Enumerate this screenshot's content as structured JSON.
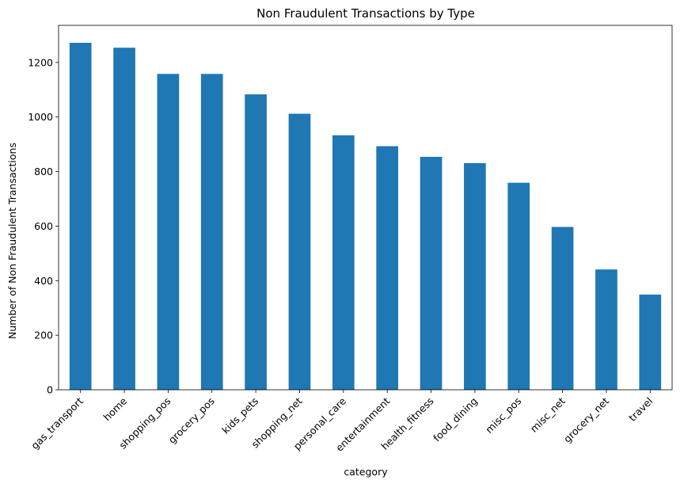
{
  "chart_data": {
    "type": "bar",
    "title": "Non Fraudulent Transactions by Type",
    "xlabel": "category",
    "ylabel": "Number of Non Fraudulent Transactions",
    "categories": [
      "gas_transport",
      "home",
      "shopping_pos",
      "grocery_pos",
      "kids_pets",
      "shopping_net",
      "personal_care",
      "entertainment",
      "health_fitness",
      "food_dining",
      "misc_pos",
      "misc_net",
      "grocery_net",
      "travel"
    ],
    "values": [
      1272,
      1254,
      1158,
      1158,
      1083,
      1012,
      933,
      893,
      854,
      831,
      759,
      597,
      441,
      349
    ],
    "yticks": [
      0,
      200,
      400,
      600,
      800,
      1000,
      1200
    ],
    "ylim": [
      0,
      1336
    ],
    "grid": false,
    "legend": "none",
    "bar_color": "#1f77b4"
  }
}
